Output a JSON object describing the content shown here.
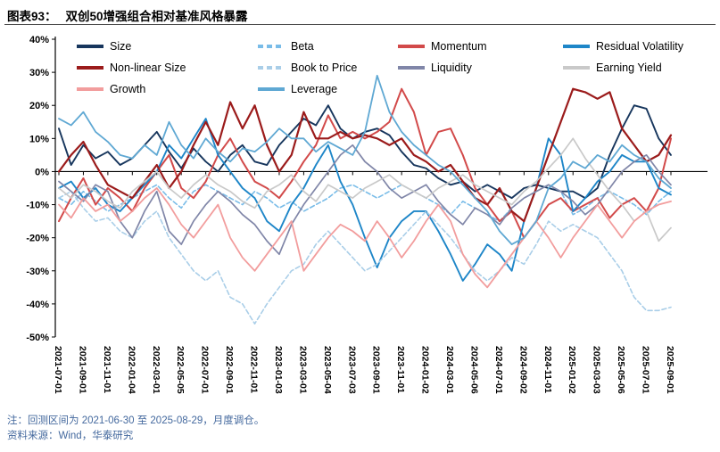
{
  "header": {
    "figure_label": "图表93：",
    "title": "双创50增强组合相对基准风格暴露"
  },
  "footer": {
    "note": "注：回测区间为 2021-06-30 至 2025-08-29，月度调仓。",
    "source": "资料来源：Wind，华泰研究"
  },
  "chart_data": {
    "type": "line",
    "title": "双创50增强组合相对基准风格暴露",
    "grid": false,
    "legend_position": "top",
    "ylim": [
      -50,
      40
    ],
    "y_tick_labels": [
      "40%",
      "30%",
      "20%",
      "10%",
      "0%",
      "-10%",
      "-20%",
      "-30%",
      "-40%",
      "-50%"
    ],
    "y_tick_values": [
      40,
      30,
      20,
      10,
      0,
      -10,
      -20,
      -30,
      -40,
      -50
    ],
    "n_points": 51,
    "x_tick_labels": [
      "2021-07-01",
      "2021-09-01",
      "2021-11-01",
      "2022-01-04",
      "2022-03-01",
      "2022-05-05",
      "2022-07-01",
      "2022-09-01",
      "2022-11-01",
      "2023-01-03",
      "2023-03-01",
      "2023-05-04",
      "2023-07-03",
      "2023-09-01",
      "2023-11-01",
      "2024-01-02",
      "2024-03-01",
      "2024-05-06",
      "2024-07-01",
      "2024-09-02",
      "2024-11-01",
      "2025-01-02",
      "2025-03-03",
      "2025-05-06",
      "2025-07-01",
      "2025-09-01"
    ],
    "series": [
      {
        "id": "size",
        "name": "Size",
        "color": "#17365D",
        "dash": "",
        "width": 1.9,
        "values": [
          13,
          2,
          8,
          4,
          6,
          2,
          4,
          8,
          12,
          6,
          1,
          7,
          3,
          0,
          5,
          8,
          3,
          2,
          8,
          12,
          16,
          14,
          20,
          13,
          10,
          12,
          13,
          11,
          6,
          2,
          1,
          -2,
          -4,
          -3,
          -6,
          -4,
          -6,
          -8,
          -5,
          -4,
          -5,
          -6,
          -6,
          -8,
          -5,
          5,
          13,
          20,
          19,
          10,
          5
        ]
      },
      {
        "id": "beta",
        "name": "Beta",
        "color": "#79BCE8",
        "dash": "5 3",
        "width": 1.6,
        "values": [
          -8,
          -10,
          -6,
          -9,
          -12,
          -10,
          -8,
          -6,
          -4,
          -8,
          -11,
          -6,
          -4,
          -6,
          -8,
          -10,
          -6,
          -8,
          -11,
          -9,
          -12,
          -10,
          -8,
          -5,
          -4,
          -6,
          -8,
          -6,
          -4,
          -6,
          -8,
          -10,
          -13,
          -9,
          -11,
          -13,
          -15,
          -11,
          -8,
          -6,
          -4,
          -6,
          -13,
          -11,
          -8,
          -6,
          -8,
          -10,
          -13,
          -9,
          -6
        ]
      },
      {
        "id": "momentum",
        "name": "Momentum",
        "color": "#D24A4A",
        "dash": "",
        "width": 2,
        "values": [
          -15,
          -8,
          -2,
          -10,
          -5,
          -8,
          -12,
          -5,
          0,
          5,
          -5,
          -8,
          -3,
          5,
          10,
          3,
          -3,
          -5,
          -8,
          -3,
          3,
          8,
          17,
          10,
          12,
          10,
          12,
          15,
          25,
          18,
          5,
          12,
          13,
          5,
          -5,
          -10,
          -15,
          -12,
          -20,
          -15,
          -10,
          -8,
          -12,
          -10,
          -8,
          -14,
          -10,
          -8,
          -12,
          -5,
          10
        ]
      },
      {
        "id": "residual-volatility",
        "name": "Residual Volatility",
        "color": "#1E86C8",
        "dash": "",
        "width": 1.9,
        "values": [
          -5,
          -3,
          -8,
          -5,
          -10,
          -12,
          -8,
          -4,
          0,
          8,
          4,
          10,
          16,
          5,
          0,
          -5,
          -8,
          -15,
          -18,
          -10,
          -5,
          2,
          8,
          -3,
          -10,
          -20,
          -29,
          -20,
          -15,
          -12,
          -12,
          -18,
          -25,
          -33,
          -28,
          -22,
          -25,
          -30,
          -15,
          -5,
          10,
          5,
          -12,
          -8,
          -3,
          0,
          5,
          3,
          3,
          -5,
          -7
        ]
      },
      {
        "id": "non-linear-size",
        "name": "Non-linear Size",
        "color": "#9B1B1B",
        "dash": "",
        "width": 2.2,
        "values": [
          0,
          5,
          9,
          2,
          -4,
          -6,
          -8,
          -3,
          2,
          -5,
          0,
          8,
          15,
          8,
          21,
          13,
          20,
          8,
          0,
          5,
          18,
          10,
          10,
          12,
          10,
          11,
          10,
          8,
          10,
          5,
          3,
          0,
          2,
          -3,
          -8,
          -10,
          -5,
          -12,
          -15,
          -5,
          5,
          15,
          25,
          24,
          22,
          24,
          13,
          8,
          3,
          5,
          11
        ]
      },
      {
        "id": "book-to-price",
        "name": "Book to Price",
        "color": "#A9CEE8",
        "dash": "5 3",
        "width": 1.6,
        "values": [
          -8,
          -6,
          -11,
          -15,
          -14,
          -18,
          -20,
          -15,
          -12,
          -20,
          -25,
          -30,
          -33,
          -30,
          -38,
          -40,
          -46,
          -40,
          -35,
          -30,
          -28,
          -22,
          -18,
          -22,
          -26,
          -30,
          -28,
          -24,
          -20,
          -16,
          -12,
          -16,
          -20,
          -25,
          -30,
          -33,
          -30,
          -26,
          -28,
          -22,
          -15,
          -18,
          -16,
          -18,
          -20,
          -25,
          -30,
          -38,
          -42,
          -42,
          -41
        ]
      },
      {
        "id": "liquidity",
        "name": "Liquidity",
        "color": "#8086A8",
        "dash": "",
        "width": 1.7,
        "values": [
          -3,
          -6,
          -9,
          -4,
          -6,
          -15,
          -20,
          -12,
          -6,
          -18,
          -22,
          -15,
          -10,
          -6,
          -9,
          -13,
          -16,
          -21,
          -25,
          -16,
          -10,
          -5,
          0,
          5,
          8,
          3,
          0,
          -5,
          -8,
          -6,
          -4,
          -9,
          -13,
          -16,
          -11,
          -13,
          -16,
          -11,
          -8,
          -6,
          -4,
          -6,
          -9,
          -13,
          -10,
          -5,
          0,
          3,
          5,
          0,
          -4
        ]
      },
      {
        "id": "earning-yield",
        "name": "Earning Yield",
        "color": "#C9C9C9",
        "dash": "",
        "width": 1.7,
        "values": [
          -5,
          -8,
          -4,
          -6,
          -9,
          -11,
          -6,
          -3,
          0,
          -5,
          -8,
          -4,
          -1,
          -4,
          -6,
          -9,
          -11,
          -6,
          -4,
          -1,
          -6,
          -9,
          -4,
          -6,
          -8,
          -5,
          -3,
          -1,
          -4,
          -6,
          -8,
          -5,
          -3,
          -1,
          -4,
          -6,
          -8,
          -10,
          -6,
          -3,
          1,
          5,
          10,
          4,
          -1,
          -6,
          -10,
          -15,
          -12,
          -21,
          -17
        ]
      },
      {
        "id": "growth",
        "name": "Growth",
        "color": "#F29D9D",
        "dash": "",
        "width": 1.8,
        "values": [
          -10,
          -14,
          -8,
          -12,
          -10,
          -15,
          -12,
          -8,
          -5,
          -10,
          -16,
          -20,
          -15,
          -10,
          -20,
          -26,
          -30,
          -25,
          -20,
          -15,
          -30,
          -25,
          -20,
          -16,
          -18,
          -21,
          -15,
          -20,
          -26,
          -21,
          -15,
          -10,
          -15,
          -25,
          -31,
          -35,
          -30,
          -25,
          -20,
          -15,
          -20,
          -26,
          -20,
          -15,
          -10,
          -15,
          -20,
          -15,
          -12,
          -10,
          -9
        ]
      },
      {
        "id": "leverage",
        "name": "Leverage",
        "color": "#5FA8D3",
        "dash": "",
        "width": 1.8,
        "values": [
          16,
          14,
          18,
          12,
          9,
          5,
          4,
          8,
          5,
          15,
          8,
          4,
          10,
          6,
          3,
          7,
          6,
          9,
          13,
          10,
          10,
          6,
          9,
          7,
          5,
          12,
          29,
          18,
          12,
          8,
          5,
          2,
          0,
          -4,
          -8,
          -12,
          -18,
          -22,
          -20,
          -15,
          -5,
          -2,
          3,
          1,
          5,
          3,
          8,
          5,
          3,
          -2,
          -5
        ]
      }
    ]
  }
}
